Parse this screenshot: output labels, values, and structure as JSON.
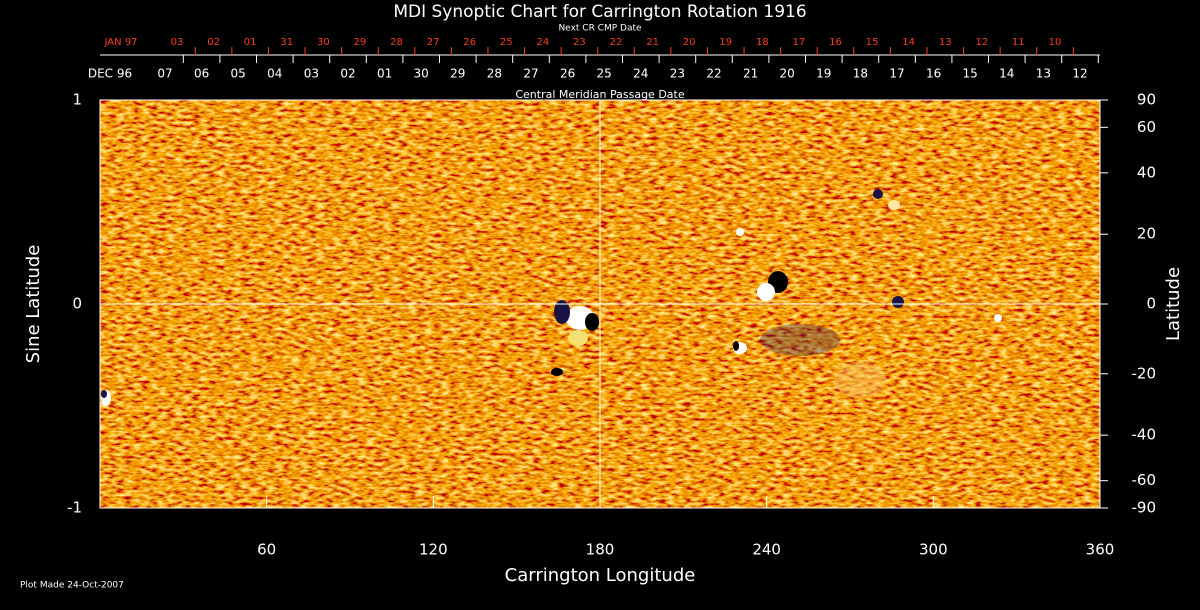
{
  "chart_data": {
    "type": "synoptic-map",
    "title": "MDI Synoptic Chart for Carrington Rotation 1916",
    "x_label": "Carrington Longitude",
    "y_label": "Sine Latitude",
    "y2_label": "Latitude",
    "xlim": [
      0,
      360
    ],
    "xticks": [
      60,
      120,
      180,
      240,
      300,
      360
    ],
    "ylim": [
      -1,
      1
    ],
    "yticks": [
      -1,
      0,
      1
    ],
    "y2lim": [
      -90,
      90
    ],
    "y2scale": "sine",
    "y2ticks": [
      90,
      60,
      40,
      20,
      0,
      -20,
      -40,
      -60,
      -90
    ],
    "reference_lines": {
      "x": 180,
      "y": 0
    },
    "top_axis": {
      "label": "Central Meridian Passage Date",
      "categories": [
        "DEC 96",
        "07",
        "06",
        "05",
        "04",
        "03",
        "02",
        "01",
        "30",
        "29",
        "28",
        "27",
        "26",
        "25",
        "24",
        "23",
        "22",
        "21",
        "20",
        "19",
        "18",
        "17",
        "16",
        "15",
        "14",
        "13",
        "12"
      ]
    },
    "next_axis": {
      "label": "Next CR CMP Date",
      "color": "#ff3b1e",
      "categories": [
        "JAN 97",
        "03",
        "02",
        "01",
        "31",
        "30",
        "29",
        "28",
        "27",
        "26",
        "25",
        "24",
        "23",
        "22",
        "21",
        "20",
        "19",
        "18",
        "17",
        "16",
        "15",
        "14",
        "13",
        "12",
        "11",
        "10"
      ]
    },
    "footnote": "Plot Made 24-Oct-2007"
  }
}
